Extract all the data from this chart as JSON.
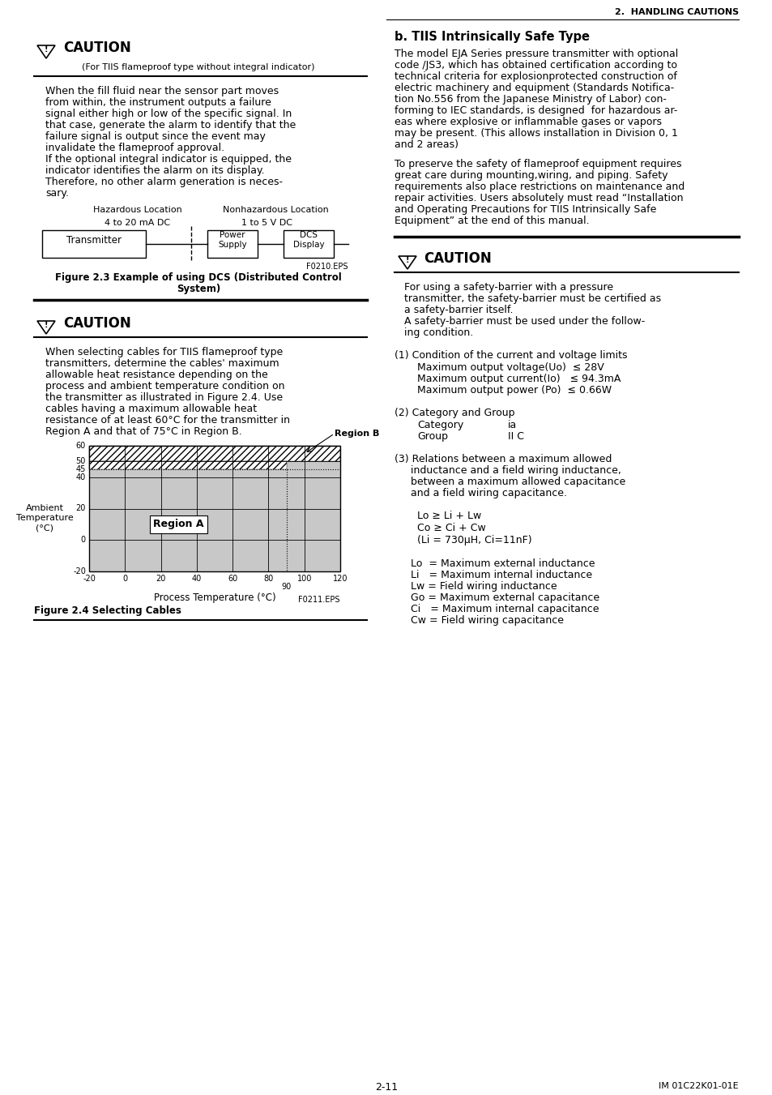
{
  "page_bg": "#ffffff",
  "header_text": "2.  HANDLING CAUTIONS",
  "footer_left": "2-11",
  "footer_right": "IM 01C22K01-01E",
  "left_col": {
    "caution1_title": "CAUTION",
    "caution1_subtitle": "(For TIIS flameproof type without integral indicator)",
    "caution1_body": [
      "When the fill fluid near the sensor part moves",
      "from within, the instrument outputs a failure",
      "signal either high or low of the specific signal. In",
      "that case, generate the alarm to identify that the",
      "failure signal is output since the event may",
      "invalidate the flameproof approval.",
      "If the optional integral indicator is equipped, the",
      "indicator identifies the alarm on its display.",
      "Therefore, no other alarm generation is neces-",
      "sary."
    ],
    "diagram_haz": "Hazardous Location",
    "diagram_nonhaz": "Nonhazardous Location",
    "diagram_signal1": "4 to 20 mA DC",
    "diagram_signal2": "1 to 5 V DC",
    "diagram_box1": "Transmitter",
    "diagram_box2": "Power\nSupply",
    "diagram_box3": "DCS\nDisplay",
    "diagram_ref": "F0210.EPS",
    "caution2_title": "CAUTION",
    "caution2_body": [
      "When selecting cables for TIIS flameproof type",
      "transmitters, determine the cables' maximum",
      "allowable heat resistance depending on the",
      "process and ambient temperature condition on",
      "the transmitter as illustrated in Figure 2.4. Use",
      "cables having a maximum allowable heat",
      "resistance of at least 60°C for the transmitter in",
      "Region A and that of 75°C in Region B."
    ],
    "fig24_caption": "Figure 2.4 Selecting Cables",
    "fig24_ref": "F0211.EPS",
    "chart_xlabel": "Process Temperature (°C)",
    "chart_ylabel_lines": [
      "Ambient",
      "Temperature",
      "(°C)"
    ],
    "chart_region_a": "Region A",
    "chart_region_b": "Region B"
  },
  "right_col": {
    "section_title": "b. TIIS Intrinsically Safe Type",
    "para1": [
      "The model EJA Series pressure transmitter with optional",
      "code /JS3, which has obtained certification according to",
      "technical criteria for explosionprotected construction of",
      "electric machinery and equipment (Standards Notifica-",
      "tion No.556 from the Japanese Ministry of Labor) con-",
      "forming to IEC standards, is designed  for hazardous ar-",
      "eas where explosive or inflammable gases or vapors",
      "may be present. (This allows installation in Division 0, 1",
      "and 2 areas)"
    ],
    "para2": [
      "To preserve the safety of flameproof equipment requires",
      "great care during mounting,wiring, and piping. Safety",
      "requirements also place restrictions on maintenance and",
      "repair activities. Users absolutely must read “Installation",
      "and Operating Precautions for TIIS Intrinsically Safe",
      "Equipment” at the end of this manual."
    ],
    "caution3_title": "CAUTION",
    "caution3_body": [
      "For using a safety-barrier with a pressure",
      "transmitter, the safety-barrier must be certified as",
      "a safety-barrier itself.",
      "A safety-barrier must be used under the follow-",
      "ing condition."
    ],
    "list1_title": "(1) Condition of the current and voltage limits",
    "list1_items": [
      "Maximum output voltage(Uo)  ≤ 28V",
      "Maximum output current(Io)   ≤ 94.3mA",
      "Maximum output power (Po)  ≤ 0.66W"
    ],
    "list2_title": "(2) Category and Group",
    "list2_items": [
      [
        "Category",
        "ia"
      ],
      [
        "Group",
        "II C"
      ]
    ],
    "list3_title": "(3) Relations between a maximum allowed",
    "list3_sub": [
      "inductance and a field wiring inductance,",
      "between a maximum allowed capacitance",
      "and a field wiring capacitance."
    ],
    "formulas": [
      "Lo ≥ Li + Lw",
      "Co ≥ Ci + Cw",
      "(Li = 730μH, Ci=11nF)"
    ],
    "legend": [
      "Lo  = Maximum external inductance",
      "Li   = Maximum internal inductance",
      "Lw = Field wiring inductance",
      "Go = Maximum external capacitance",
      "Ci   = Maximum internal capacitance",
      "Cw = Field wiring capacitance"
    ]
  }
}
